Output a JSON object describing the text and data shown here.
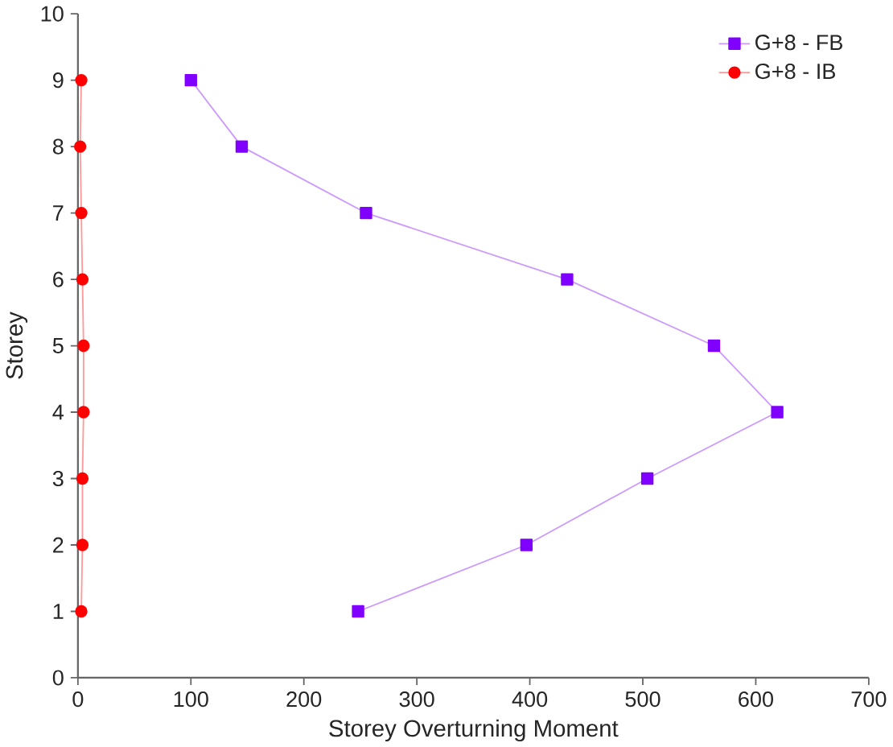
{
  "chart_data": {
    "type": "line",
    "xlabel": "Storey Overturning Moment",
    "ylabel": "Storey",
    "x": [
      1,
      2,
      3,
      4,
      5,
      6,
      7,
      8,
      9
    ],
    "orientation": "horizontal",
    "series": [
      {
        "name": "G+8 - FB",
        "color": "#7f00ff",
        "marker": "square",
        "values": [
          248,
          397,
          504,
          619,
          563,
          433,
          255,
          145,
          100
        ]
      },
      {
        "name": "G+8 - IB",
        "color": "#ff0000",
        "marker": "circle",
        "values": [
          3,
          4,
          4,
          5,
          5,
          4,
          3,
          2,
          3
        ]
      }
    ],
    "xlim": [
      0,
      700
    ],
    "xticks": [
      0,
      100,
      200,
      300,
      400,
      500,
      600,
      700
    ],
    "ylim": [
      0,
      10
    ],
    "yticks": [
      0,
      1,
      2,
      3,
      4,
      5,
      6,
      7,
      8,
      9,
      10
    ],
    "grid": false,
    "legend": "top right",
    "line_style": "solid"
  }
}
